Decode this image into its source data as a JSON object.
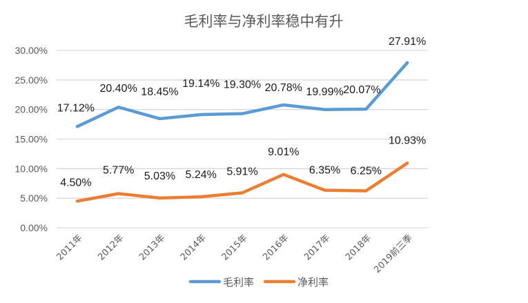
{
  "chart_data": {
    "type": "line",
    "title": "毛利率与净利率稳中有升",
    "xlabel": "",
    "ylabel": "",
    "ylim": [
      0,
      30
    ],
    "yticks": [
      "0.00%",
      "5.00%",
      "10.00%",
      "15.00%",
      "20.00%",
      "25.00%",
      "30.00%"
    ],
    "grid": true,
    "legend_position": "bottom",
    "categories": [
      "2011年",
      "2012年",
      "2013年",
      "2014年",
      "2015年",
      "2016年",
      "2017年",
      "2018年",
      "2019前三季"
    ],
    "series": [
      {
        "name": "毛利率",
        "color": "#5b9bd5",
        "values": [
          17.12,
          20.4,
          18.45,
          19.14,
          19.3,
          20.78,
          19.99,
          20.07,
          27.91
        ],
        "labels": [
          "17.12%",
          "20.40%",
          "18.45%",
          "19.14%",
          "19.30%",
          "20.78%",
          "19.99%",
          "20.07%",
          "27.91%"
        ]
      },
      {
        "name": "净利率",
        "color": "#ed7d31",
        "values": [
          4.5,
          5.77,
          5.03,
          5.24,
          5.91,
          9.01,
          6.35,
          6.25,
          10.93
        ],
        "labels": [
          "4.50%",
          "5.77%",
          "5.03%",
          "5.24%",
          "5.91%",
          "9.01%",
          "6.35%",
          "6.25%",
          "10.93%"
        ]
      }
    ]
  }
}
